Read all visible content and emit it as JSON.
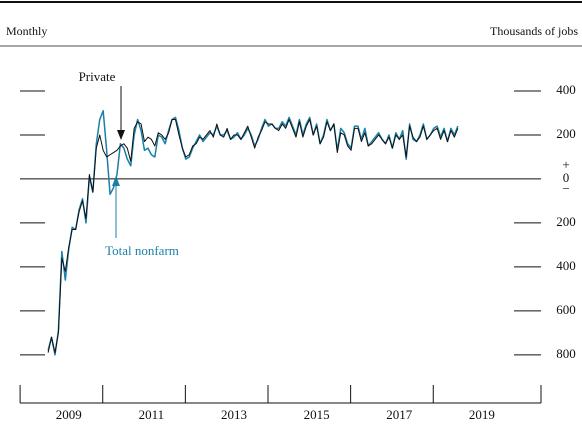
{
  "chart_data": {
    "type": "line",
    "header_left": "Monthly",
    "header_right": "Thousands of jobs",
    "zero_plus": "+",
    "zero_minus": "−",
    "annotations": [
      "Private",
      "Total nonfarm"
    ],
    "x": [
      2009,
      2009.083,
      2009.167,
      2009.25,
      2009.333,
      2009.417,
      2009.5,
      2009.583,
      2009.667,
      2009.75,
      2009.833,
      2009.917,
      2010,
      2010.083,
      2010.167,
      2010.25,
      2010.333,
      2010.417,
      2010.5,
      2010.583,
      2010.667,
      2010.75,
      2010.833,
      2010.917,
      2011,
      2011.083,
      2011.167,
      2011.25,
      2011.333,
      2011.417,
      2011.5,
      2011.583,
      2011.667,
      2011.75,
      2011.833,
      2011.917,
      2012,
      2012.083,
      2012.167,
      2012.25,
      2012.333,
      2012.417,
      2012.5,
      2012.583,
      2012.667,
      2012.75,
      2012.833,
      2012.917,
      2013,
      2013.083,
      2013.167,
      2013.25,
      2013.333,
      2013.417,
      2013.5,
      2013.583,
      2013.667,
      2013.75,
      2013.833,
      2013.917,
      2014,
      2014.083,
      2014.167,
      2014.25,
      2014.333,
      2014.417,
      2014.5,
      2014.583,
      2014.667,
      2014.75,
      2014.833,
      2014.917,
      2015,
      2015.083,
      2015.167,
      2015.25,
      2015.333,
      2015.417,
      2015.5,
      2015.583,
      2015.667,
      2015.75,
      2015.833,
      2015.917,
      2016,
      2016.083,
      2016.167,
      2016.25,
      2016.333,
      2016.417,
      2016.5,
      2016.583,
      2016.667,
      2016.75,
      2016.833,
      2016.917,
      2017,
      2017.083,
      2017.167,
      2017.25,
      2017.333,
      2017.417,
      2017.5,
      2017.583,
      2017.667,
      2017.75,
      2017.833,
      2017.917,
      2018,
      2018.083,
      2018.167,
      2018.25,
      2018.333,
      2018.417,
      2018.5,
      2018.583,
      2018.667,
      2018.75,
      2018.833,
      2018.917
    ],
    "series": [
      {
        "name": "Total nonfarm",
        "color": "#1b7fa8",
        "values": [
          -780,
          -720,
          -800,
          -690,
          -330,
          -460,
          -320,
          -220,
          -230,
          -140,
          -90,
          -200,
          10,
          -60,
          160,
          270,
          310,
          130,
          -70,
          -40,
          20,
          160,
          140,
          90,
          60,
          200,
          270,
          220,
          130,
          140,
          110,
          100,
          200,
          190,
          160,
          220,
          270,
          280,
          220,
          140,
          90,
          100,
          140,
          170,
          200,
          170,
          190,
          210,
          200,
          240,
          200,
          200,
          220,
          180,
          190,
          210,
          180,
          200,
          230,
          200,
          150,
          180,
          230,
          270,
          240,
          250,
          230,
          230,
          260,
          240,
          280,
          240,
          200,
          270,
          200,
          250,
          280,
          200,
          250,
          160,
          200,
          270,
          220,
          250,
          130,
          230,
          210,
          160,
          140,
          240,
          240,
          180,
          230,
          150,
          170,
          190,
          210,
          180,
          160,
          200,
          140,
          210,
          180,
          220,
          90,
          250,
          180,
          170,
          200,
          250,
          180,
          200,
          230,
          240,
          190,
          230,
          170,
          230,
          200,
          240
        ]
      },
      {
        "name": "Private",
        "color": "#111111",
        "values": [
          -790,
          -720,
          -790,
          -700,
          -360,
          -420,
          -310,
          -230,
          -230,
          -150,
          -100,
          -180,
          20,
          -60,
          140,
          200,
          130,
          100,
          110,
          120,
          130,
          150,
          160,
          140,
          80,
          230,
          260,
          250,
          170,
          190,
          180,
          150,
          210,
          200,
          180,
          210,
          270,
          270,
          200,
          140,
          100,
          110,
          150,
          160,
          190,
          180,
          200,
          220,
          190,
          250,
          200,
          190,
          230,
          180,
          200,
          200,
          180,
          210,
          240,
          190,
          140,
          190,
          220,
          260,
          250,
          250,
          230,
          220,
          250,
          230,
          270,
          230,
          190,
          260,
          190,
          240,
          270,
          200,
          240,
          160,
          190,
          260,
          220,
          250,
          120,
          210,
          200,
          150,
          130,
          230,
          230,
          170,
          210,
          150,
          160,
          180,
          200,
          180,
          160,
          190,
          140,
          200,
          180,
          200,
          100,
          240,
          190,
          170,
          190,
          240,
          180,
          200,
          220,
          230,
          180,
          220,
          170,
          220,
          190,
          230
        ]
      }
    ],
    "xlim": [
      2008.32,
      2020.93
    ],
    "xticks": [
      2009,
      2011,
      2013,
      2015,
      2017,
      2019
    ],
    "ylim": [
      -960,
      600
    ],
    "yticks": [
      400,
      200,
      0,
      {
        "value": -200,
        "label": "200"
      },
      {
        "value": -400,
        "label": "400"
      },
      {
        "value": -600,
        "label": "600"
      },
      {
        "value": -800,
        "label": "800"
      }
    ]
  }
}
